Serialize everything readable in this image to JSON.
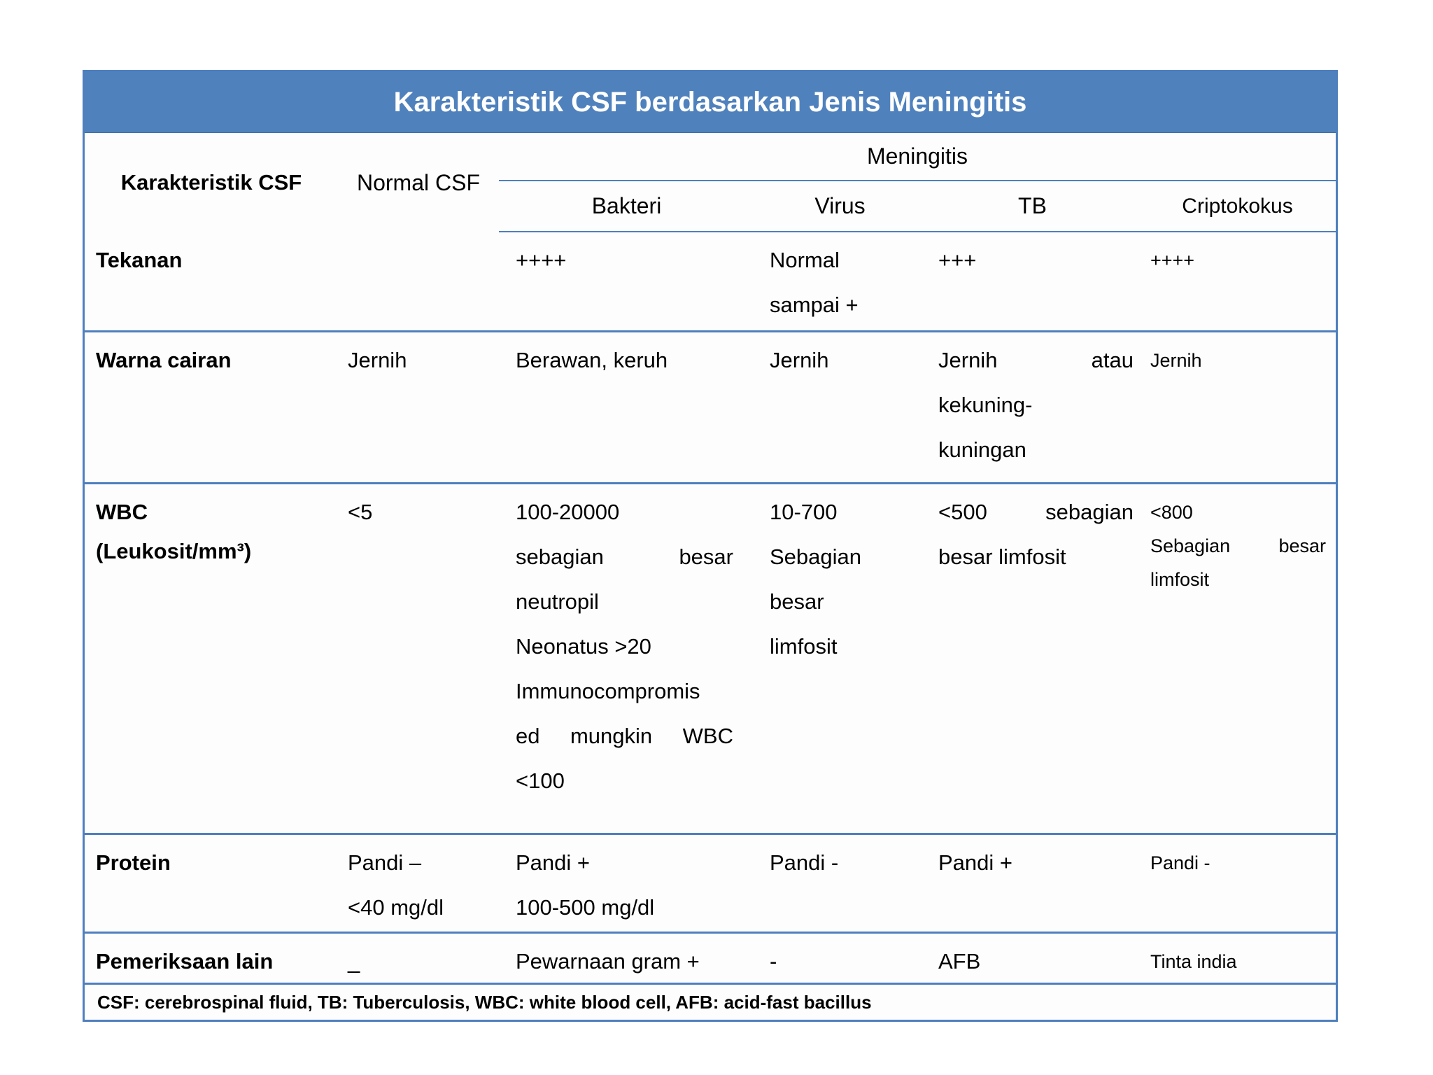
{
  "colors": {
    "title_bar_bg": "#4f81bd",
    "title_text": "#ffffff",
    "table_border": "#4e7fbe",
    "body_text": "#000000"
  },
  "title": "Karakteristik CSF berdasarkan Jenis Meningitis",
  "header": {
    "characteristic": "Karakteristik CSF",
    "normal": "Normal CSF",
    "group": "Meningitis",
    "bakteri": "Bakteri",
    "virus": "Virus",
    "tb": "TB",
    "criptokokus": "Criptokokus"
  },
  "rows": {
    "tekanan": {
      "label": "Tekanan",
      "normal": [],
      "bakteri": [
        "++++"
      ],
      "virus": [
        "Normal",
        "sampai +"
      ],
      "tb": [
        "+++"
      ],
      "criptokokus": [
        "++++"
      ]
    },
    "warna": {
      "label": "Warna cairan",
      "normal": [
        "Jernih"
      ],
      "bakteri": [
        "Berawan, keruh"
      ],
      "virus": [
        "Jernih"
      ],
      "tb": [
        "Jernih atau",
        "kekuning-",
        "kuningan"
      ],
      "criptokokus": [
        "Jernih"
      ]
    },
    "wbc": {
      "label": "WBC",
      "label2": "(Leukosit/mm³)",
      "normal": [
        "<5"
      ],
      "bakteri": [
        "100-20000",
        "sebagian besar",
        "neutropil",
        "Neonatus >20",
        "Immunocompromis",
        "ed mungkin WBC",
        "<100"
      ],
      "virus": [
        "10-700",
        "Sebagian",
        "besar",
        "limfosit"
      ],
      "tb": [
        "<500 sebagian",
        "besar limfosit"
      ],
      "criptokokus": [
        "<800",
        "Sebagian besar",
        "limfosit"
      ]
    },
    "protein": {
      "label": "Protein",
      "normal": [
        "Pandi –",
        "<40 mg/dl"
      ],
      "bakteri": [
        "Pandi +",
        "100-500 mg/dl"
      ],
      "virus": [
        "Pandi -"
      ],
      "tb": [
        "Pandi +"
      ],
      "criptokokus": [
        "Pandi -"
      ]
    },
    "pemeriksaan": {
      "label": "Pemeriksaan lain",
      "normal": [
        "_"
      ],
      "bakteri": [
        "Pewarnaan gram +"
      ],
      "virus": [
        "-"
      ],
      "tb": [
        "AFB"
      ],
      "criptokokus": [
        "Tinta india"
      ]
    }
  },
  "footer": "CSF: cerebrospinal fluid, TB: Tuberculosis, WBC: white blood cell, AFB: acid-fast bacillus"
}
